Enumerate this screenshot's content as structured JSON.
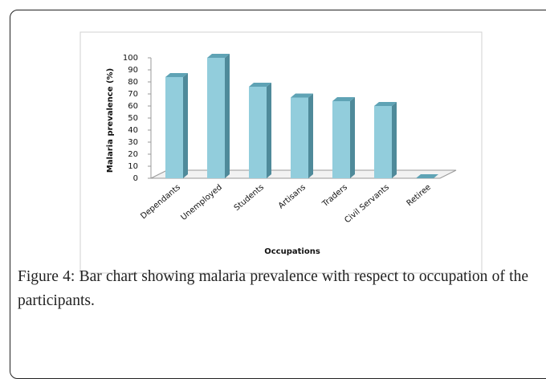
{
  "chart_data": {
    "type": "bar",
    "categories": [
      "Dependants",
      "Unemployed",
      "Students",
      "Artisans",
      "Traders",
      "Civil Servants",
      "Retiree"
    ],
    "values": [
      84,
      100,
      76,
      67,
      64,
      60,
      0
    ],
    "color": "#92cddc",
    "xlabel": "Occupations",
    "ylabel": "Malaria prevalence (%)",
    "ylim": [
      0,
      100
    ],
    "yticks": [
      0,
      10,
      20,
      30,
      40,
      50,
      60,
      70,
      80,
      90,
      100
    ],
    "grid": false
  },
  "caption": "Figure 4: Bar chart showing malaria prevalence with respect to occupation of the participants."
}
